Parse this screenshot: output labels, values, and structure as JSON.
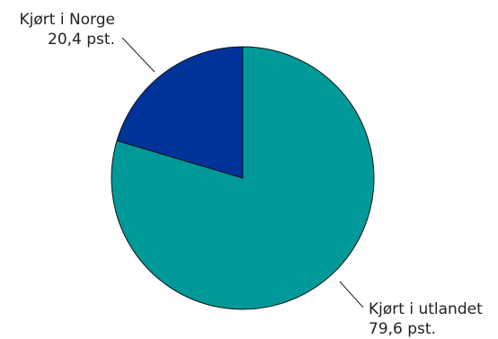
{
  "chart_data": {
    "type": "pie",
    "title": "",
    "slices": [
      {
        "label": "Kjørt i utlandet",
        "value_label": "79,6 pst.",
        "value": 79.6,
        "color": "#009999"
      },
      {
        "label": "Kjørt i Norge",
        "value_label": "20,4 pst.",
        "value": 20.4,
        "color": "#003399"
      }
    ],
    "legend": "none",
    "start": "top, clockwise"
  }
}
